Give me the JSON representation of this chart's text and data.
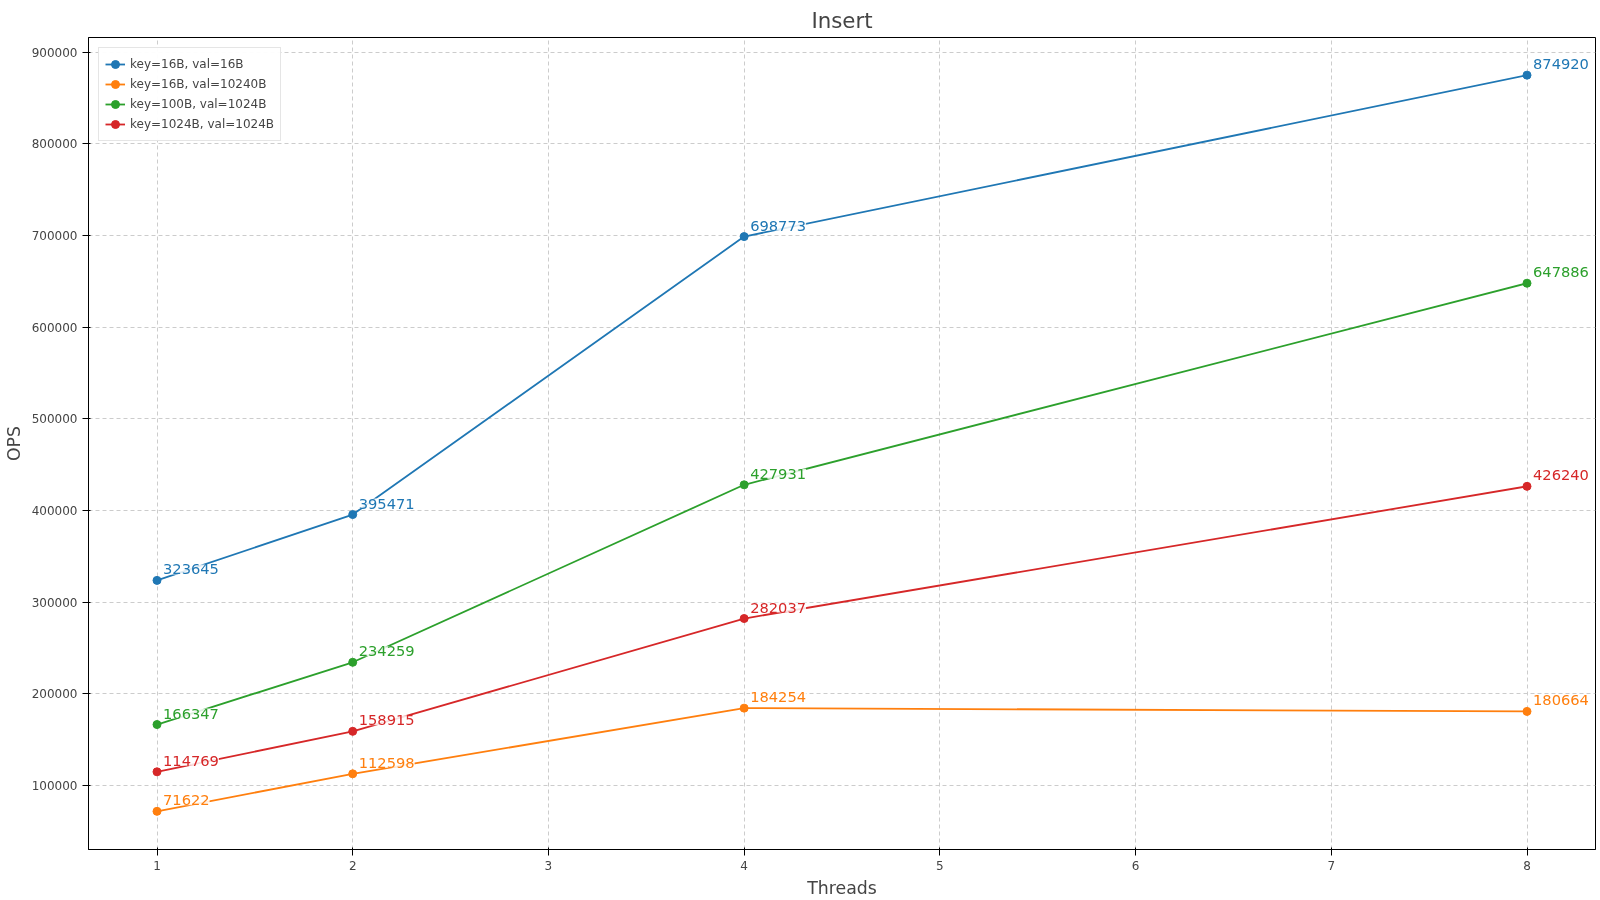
{
  "chart_data": {
    "type": "line",
    "title": "Insert",
    "xlabel": "Threads",
    "ylabel": "OPS",
    "x": [
      1,
      2,
      4,
      8
    ],
    "series": [
      {
        "name": "key=16B, val=16B",
        "color": "#1f77b4",
        "values": [
          323645,
          395471,
          698773,
          874920
        ]
      },
      {
        "name": "key=16B, val=10240B",
        "color": "#ff7f0e",
        "values": [
          71622,
          112598,
          184254,
          180664
        ]
      },
      {
        "name": "key=100B, val=1024B",
        "color": "#2ca02c",
        "values": [
          166347,
          234259,
          427931,
          647886
        ]
      },
      {
        "name": "key=1024B, val=1024B",
        "color": "#d62728",
        "values": [
          114769,
          158915,
          282037,
          426240
        ]
      }
    ],
    "xlim": [
      0.65,
      8.35
    ],
    "xticks": [
      1,
      2,
      3,
      4,
      5,
      6,
      7,
      8
    ],
    "ylim": [
      30000,
      916000
    ],
    "yticks": [
      100000,
      200000,
      300000,
      400000,
      500000,
      600000,
      700000,
      800000,
      900000
    ],
    "grid": true,
    "legend": "top left",
    "marker": "circle",
    "line_style": "solid",
    "data_labels": true
  }
}
